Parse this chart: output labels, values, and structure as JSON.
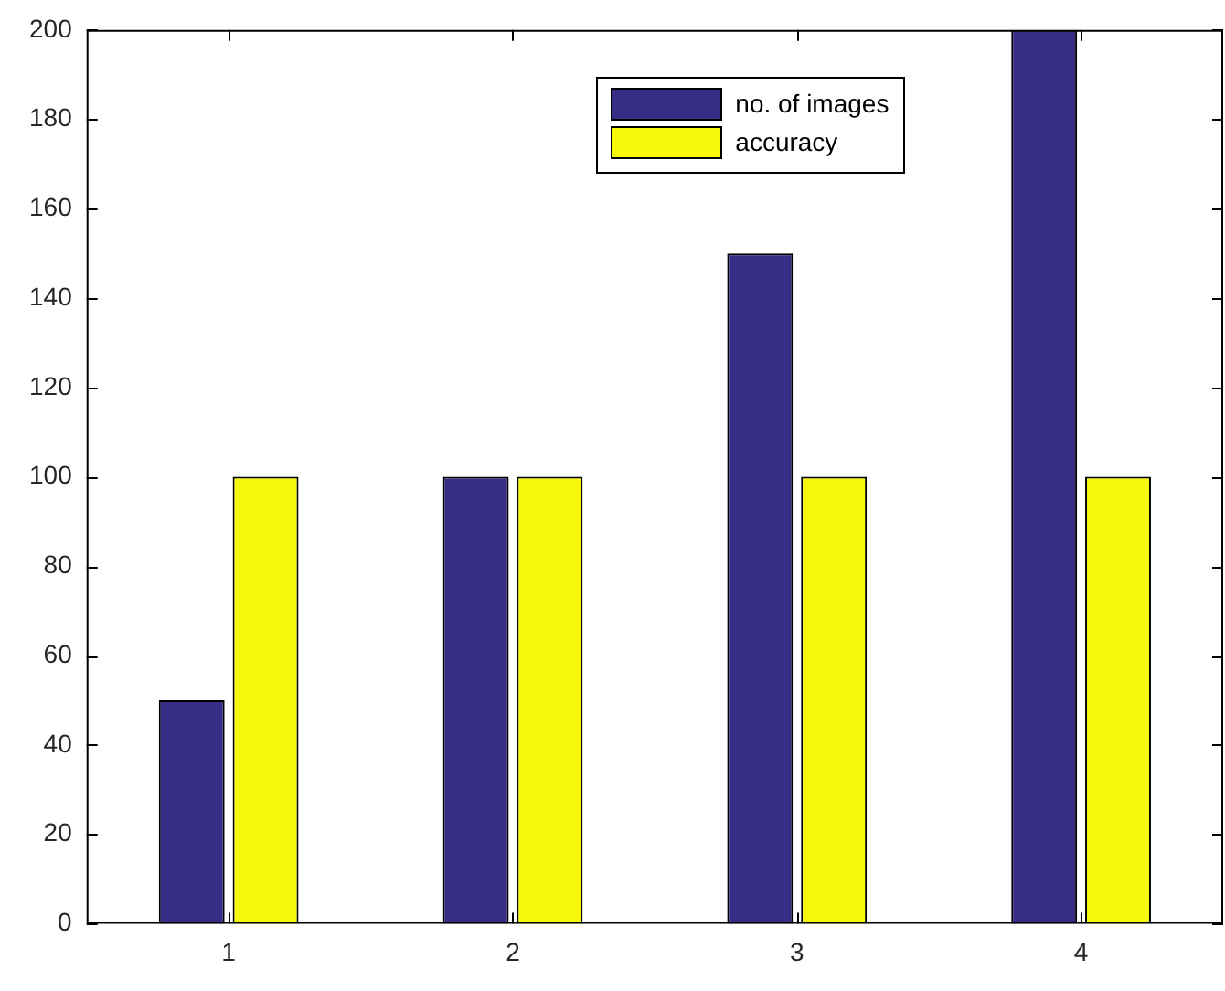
{
  "chart_data": {
    "type": "bar",
    "categories": [
      "1",
      "2",
      "3",
      "4"
    ],
    "series": [
      {
        "name": "no. of images",
        "color": "#352d86",
        "values": [
          50,
          100,
          150,
          200
        ]
      },
      {
        "name": "accuracy",
        "color": "#f7f70a",
        "values": [
          100,
          100,
          100,
          100
        ]
      }
    ],
    "ylim": [
      0,
      200
    ],
    "yticks": [
      0,
      20,
      40,
      60,
      80,
      100,
      120,
      140,
      160,
      180,
      200
    ],
    "grid": false,
    "legend": "top"
  }
}
